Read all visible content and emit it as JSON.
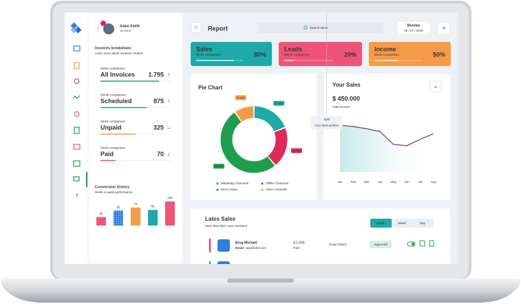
{
  "user": {
    "name": "Adam Smith",
    "id": "10/15910",
    "badge": "10"
  },
  "invoices": {
    "title": "Invoices breakdown",
    "subtitle": "Learn more about invoices created",
    "items": [
      {
        "period": "Week comparison",
        "label": "All Invoices",
        "value": "1.795",
        "trend": "↑",
        "color": "#22a06b"
      },
      {
        "period": "Month comparison",
        "label": "Scheduled",
        "value": "875",
        "trend": "↑",
        "color": "#22a06b"
      },
      {
        "period": "Week comparison",
        "label": "Unpaid",
        "value": "325",
        "trend": "→",
        "color": "#f59b47"
      },
      {
        "period": "Week comparison",
        "label": "Paid",
        "value": "70",
        "trend": "↓",
        "color": "#ef4f6f"
      }
    ]
  },
  "conversion": {
    "title": "Conversion history",
    "subtitle": "Week to week performance",
    "type": "bar",
    "bars": [
      {
        "value": 35,
        "color": "#f0567a"
      },
      {
        "value": 62,
        "color": "#2d7fe0"
      },
      {
        "value": 75,
        "color": "#f59b47"
      },
      {
        "value": 65,
        "color": "#1fa9a9"
      },
      {
        "value": 100,
        "color": "#f0567a"
      }
    ]
  },
  "topbar": {
    "title": "Report",
    "search": "Search items",
    "day": "Monday",
    "date": "20 / 07 / 2020"
  },
  "cards": [
    {
      "title": "Sales",
      "subtitle": "Week comparison",
      "value": 80,
      "value_label": "80%",
      "color": "#1fa9a9"
    },
    {
      "title": "Leads",
      "subtitle": "Month comparison",
      "value": 20,
      "value_label": "20%",
      "color": "#ef5478"
    },
    {
      "title": "Income",
      "subtitle": "Week comparison",
      "value": 50,
      "value_label": "50%",
      "color": "#f59b47"
    }
  ],
  "pie": {
    "title": "Pie Chart",
    "type": "pie",
    "slices": [
      {
        "name": "Marketing Channels",
        "color": "#1fa9a9",
        "value": 365,
        "value_label": "$ 365"
      },
      {
        "name": "Offline Channels",
        "color": "#e0285a",
        "value": 380,
        "value_label": "$ 380"
      },
      {
        "name": "Direct Sales",
        "color": "#1e9e4a",
        "value": 980,
        "value_label": "$ 980"
      },
      {
        "name": "Other Channels",
        "color": "#f59b47",
        "value": 185,
        "value_label": "$ 185"
      }
    ]
  },
  "sales": {
    "title": "Your Sales",
    "total": "$ 450.000",
    "total_label": "Total Income",
    "type": "line",
    "color": "#7b3f8f",
    "months": [
      "Jan",
      "Feb",
      "Mar",
      "Apr",
      "May",
      "Jun",
      "Jul",
      "Aug"
    ],
    "values": [
      67,
      65,
      62,
      58,
      40,
      38,
      47,
      55
    ],
    "tooltip": {
      "title": "April",
      "text": "Your best archive"
    }
  },
  "latest": {
    "title": "Lates Sales",
    "subtitle": "More than 550+ new members",
    "tabs": [
      "Month",
      "Week",
      "Day"
    ],
    "rows": [
      {
        "name": "Brug Michael",
        "email_label": "Email",
        "email": "app@idev.com",
        "amount": "$ 2,006",
        "status": "Paid",
        "product": "Smart Watch",
        "badge": "Approved"
      }
    ]
  }
}
